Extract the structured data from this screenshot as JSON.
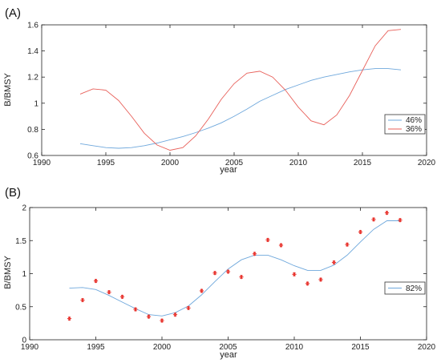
{
  "chart_data": [
    {
      "panel_label": "(A)",
      "type": "line",
      "xlabel": "year",
      "ylabel": "B/BMSY",
      "xlim": [
        1990,
        2020
      ],
      "ylim": [
        0.6,
        1.6
      ],
      "xticks": [
        1990,
        1995,
        2000,
        2005,
        2010,
        2015,
        2020
      ],
      "yticks": [
        0.6,
        0.8,
        1,
        1.2,
        1.4,
        1.6
      ],
      "xtick_labels": [
        "1990",
        "1995",
        "2000",
        "2005",
        "2010",
        "2015",
        "2020"
      ],
      "ytick_labels": [
        "0.6",
        "0.8",
        "1",
        "1.2",
        "1.4",
        "1.6"
      ],
      "legend_position": "lower-right",
      "x": [
        1993,
        1994,
        1995,
        1996,
        1997,
        1998,
        1999,
        2000,
        2001,
        2002,
        2003,
        2004,
        2005,
        2006,
        2007,
        2008,
        2009,
        2010,
        2011,
        2012,
        2013,
        2014,
        2015,
        2016,
        2017,
        2018
      ],
      "series": [
        {
          "name": "46%",
          "color": "#6fa8dc",
          "values": [
            0.69,
            0.675,
            0.66,
            0.655,
            0.66,
            0.675,
            0.695,
            0.72,
            0.745,
            0.775,
            0.81,
            0.85,
            0.9,
            0.955,
            1.015,
            1.06,
            1.105,
            1.14,
            1.175,
            1.2,
            1.22,
            1.24,
            1.255,
            1.265,
            1.265,
            1.255
          ]
        },
        {
          "name": "36%",
          "color": "#e8605a",
          "values": [
            1.07,
            1.11,
            1.1,
            1.02,
            0.9,
            0.77,
            0.68,
            0.64,
            0.66,
            0.75,
            0.88,
            1.03,
            1.15,
            1.23,
            1.245,
            1.2,
            1.1,
            0.97,
            0.865,
            0.835,
            0.91,
            1.06,
            1.25,
            1.44,
            1.555,
            1.565
          ]
        }
      ]
    },
    {
      "panel_label": "(B)",
      "type": "line",
      "xlabel": "year",
      "ylabel": "B/BMSY",
      "xlim": [
        1990,
        2020
      ],
      "ylim": [
        0,
        2
      ],
      "xticks": [
        1990,
        1995,
        2000,
        2005,
        2010,
        2015,
        2020
      ],
      "yticks": [
        0,
        0.5,
        1,
        1.5,
        2
      ],
      "xtick_labels": [
        "1990",
        "1995",
        "2000",
        "2005",
        "2010",
        "2015",
        "2020"
      ],
      "ytick_labels": [
        "0",
        "0.5",
        "1",
        "1.5",
        "2"
      ],
      "legend_position": "middle-right",
      "x": [
        1993,
        1994,
        1995,
        1996,
        1997,
        1998,
        1999,
        2000,
        2001,
        2002,
        2003,
        2004,
        2005,
        2006,
        2007,
        2008,
        2009,
        2010,
        2011,
        2012,
        2013,
        2014,
        2015,
        2016,
        2017,
        2018
      ],
      "series": [
        {
          "name": "82%",
          "color": "#6fa8dc",
          "values": [
            0.78,
            0.79,
            0.76,
            0.67,
            0.57,
            0.47,
            0.38,
            0.36,
            0.41,
            0.51,
            0.68,
            0.88,
            1.07,
            1.21,
            1.28,
            1.28,
            1.21,
            1.12,
            1.05,
            1.05,
            1.13,
            1.28,
            1.48,
            1.67,
            1.8,
            1.8
          ]
        }
      ],
      "observations": {
        "color": "#e8352f",
        "marker": "asterisk",
        "values": [
          0.32,
          0.6,
          0.89,
          0.72,
          0.65,
          0.46,
          0.35,
          0.29,
          0.38,
          0.48,
          0.74,
          1.01,
          1.03,
          0.95,
          1.3,
          1.51,
          1.43,
          0.99,
          0.85,
          0.91,
          1.17,
          1.44,
          1.63,
          1.82,
          1.92,
          1.81
        ]
      }
    }
  ]
}
